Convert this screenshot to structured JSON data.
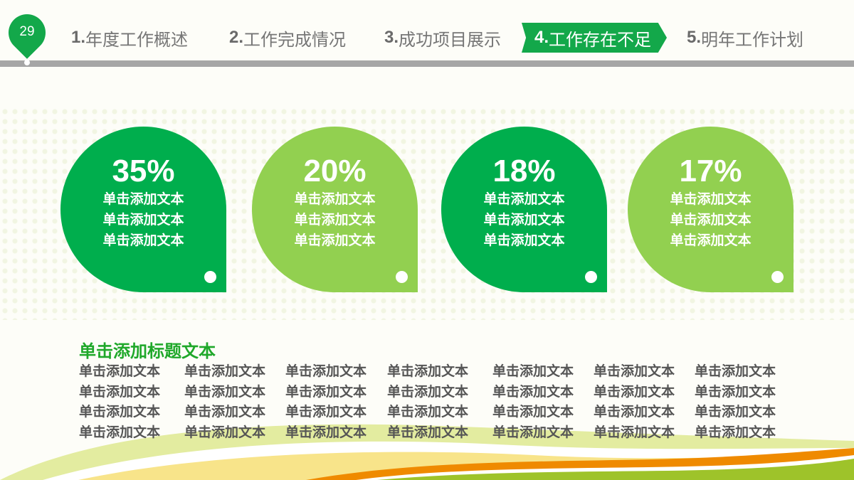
{
  "slide_number": "29",
  "nav": [
    {
      "num": "1.",
      "label": "年度工作概述",
      "active": false
    },
    {
      "num": "2.",
      "label": "工作完成情况",
      "active": false
    },
    {
      "num": "3.",
      "label": "成功项目展示",
      "active": false
    },
    {
      "num": "4.",
      "label": "工作存在不足",
      "active": true
    },
    {
      "num": "5.",
      "label": "明年工作计划",
      "active": false
    }
  ],
  "cards": [
    {
      "value": "35%",
      "lines": [
        "单击添加文本",
        "单击添加文本",
        "单击添加文本"
      ]
    },
    {
      "value": "20%",
      "lines": [
        "单击添加文本",
        "单击添加文本",
        "单击添加文本"
      ]
    },
    {
      "value": "18%",
      "lines": [
        "单击添加文本",
        "单击添加文本",
        "单击添加文本"
      ]
    },
    {
      "value": "17%",
      "lines": [
        "单击添加文本",
        "单击添加文本",
        "单击添加文本"
      ]
    }
  ],
  "section_title": "单击添加标题文本",
  "body_cell": "单击添加文本",
  "colors": {
    "dark_green": "#00ae4d",
    "light_green": "#92d050",
    "nav_active": "#13a84a",
    "orange": "#ef8a00"
  }
}
